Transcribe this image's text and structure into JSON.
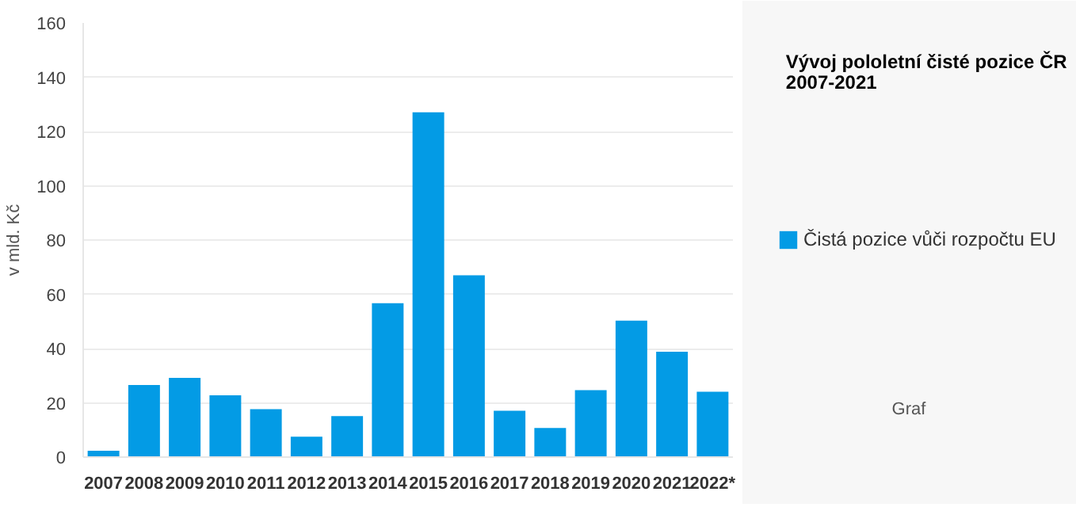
{
  "chart_data": {
    "type": "bar",
    "title": "Vývoj pololetní čisté pozice ČR\n2007-2021",
    "ylabel": "v mld. Kč",
    "categories": [
      "2007",
      "2008",
      "2009",
      "2010",
      "2011",
      "2012",
      "2013",
      "2014",
      "2015",
      "2016",
      "2017",
      "2018",
      "2019",
      "2020",
      "2021",
      "2022*"
    ],
    "series": [
      {
        "name": "Čistá pozice vůči rozpočtu EU",
        "color": "#039be5",
        "values": [
          2.3,
          26.6,
          29.2,
          22.8,
          17.7,
          7.5,
          15.1,
          56.7,
          127.1,
          67,
          17.1,
          10.7,
          24.7,
          50.3,
          38.8,
          24.1
        ]
      }
    ],
    "ylim": [
      0,
      160
    ],
    "yticks": [
      0,
      20,
      40,
      60,
      80,
      100,
      120,
      140,
      160
    ],
    "grid": "y",
    "legend": "right",
    "annotations": [
      "Graf"
    ]
  }
}
